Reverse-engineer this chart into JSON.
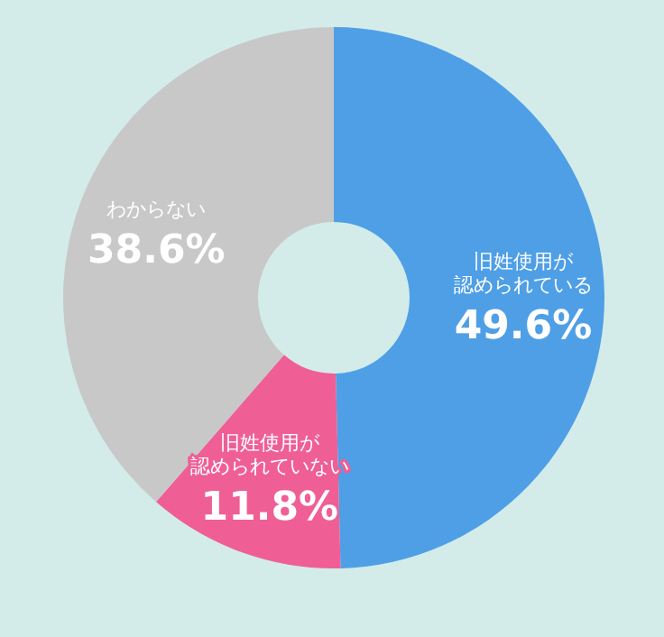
{
  "chart_data": {
    "type": "donut",
    "categories": [
      "旧姓使用が認められている",
      "旧姓使用が認められていない",
      "わからない"
    ],
    "values": [
      49.6,
      11.8,
      38.6
    ],
    "value_labels": [
      "49.6%",
      "11.8%",
      "38.6%"
    ],
    "colors": [
      "#4f9fe6",
      "#ef5f96",
      "#c8c8c8"
    ]
  }
}
